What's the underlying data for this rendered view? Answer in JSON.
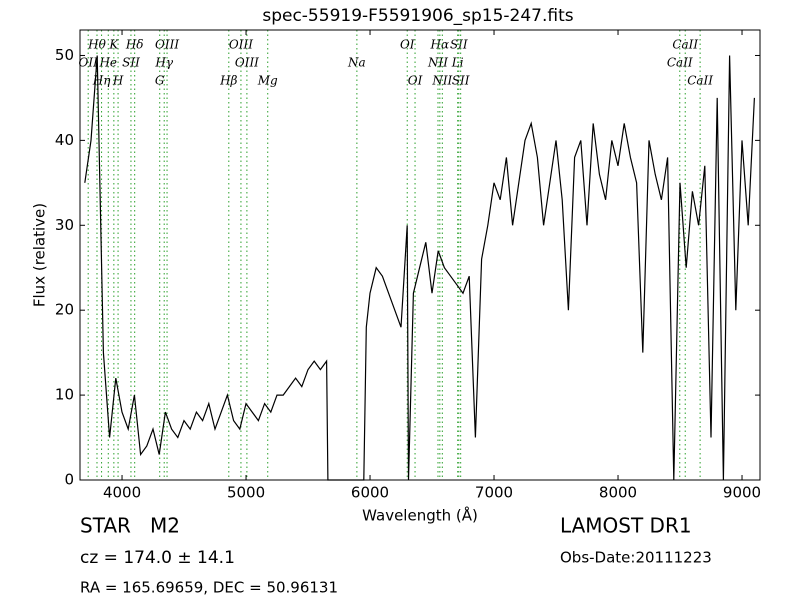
{
  "chart_data": {
    "type": "line",
    "title": "spec-55919-F5591906_sp15-247.fits",
    "xlabel": "Wavelength (Å)",
    "ylabel": "Flux (relative)",
    "xlim": [
      3661,
      9145
    ],
    "ylim": [
      0,
      53
    ],
    "xticks": [
      4000,
      5000,
      6000,
      7000,
      8000,
      9000
    ],
    "yticks": [
      0,
      10,
      20,
      30,
      40,
      50
    ],
    "series": [
      {
        "name": "spectrum",
        "color": "#000000",
        "x": [
          3700,
          3750,
          3800,
          3850,
          3900,
          3950,
          4000,
          4050,
          4100,
          4150,
          4200,
          4250,
          4300,
          4350,
          4400,
          4450,
          4500,
          4550,
          4600,
          4650,
          4700,
          4750,
          4800,
          4850,
          4900,
          4950,
          5000,
          5050,
          5100,
          5150,
          5200,
          5250,
          5300,
          5350,
          5400,
          5450,
          5500,
          5550,
          5600,
          5650,
          5660,
          5700,
          5800,
          5900,
          5950,
          5970,
          6000,
          6050,
          6100,
          6150,
          6200,
          6250,
          6300,
          6310,
          6350,
          6400,
          6450,
          6500,
          6550,
          6600,
          6650,
          6700,
          6750,
          6800,
          6850,
          6900,
          6950,
          7000,
          7050,
          7100,
          7150,
          7200,
          7250,
          7300,
          7350,
          7400,
          7450,
          7500,
          7550,
          7600,
          7650,
          7700,
          7750,
          7800,
          7850,
          7900,
          7950,
          8000,
          8050,
          8100,
          8150,
          8200,
          8250,
          8300,
          8350,
          8400,
          8450,
          8500,
          8550,
          8600,
          8650,
          8700,
          8750,
          8800,
          8850,
          8900,
          8950,
          9000,
          9050,
          9100
        ],
        "values": [
          35,
          40,
          50,
          15,
          5,
          12,
          8,
          6,
          10,
          3,
          4,
          6,
          3,
          8,
          6,
          5,
          7,
          6,
          8,
          7,
          9,
          6,
          8,
          10,
          7,
          6,
          9,
          8,
          7,
          9,
          8,
          10,
          10,
          11,
          12,
          11,
          13,
          14,
          13,
          14,
          0,
          0,
          0,
          0,
          0,
          18,
          22,
          25,
          24,
          22,
          20,
          18,
          30,
          0,
          22,
          25,
          28,
          22,
          27,
          25,
          24,
          23,
          22,
          24,
          5,
          26,
          30,
          35,
          33,
          38,
          30,
          35,
          40,
          42,
          38,
          30,
          35,
          40,
          33,
          20,
          38,
          40,
          30,
          42,
          36,
          33,
          40,
          37,
          42,
          38,
          35,
          15,
          40,
          36,
          33,
          38,
          0,
          35,
          25,
          34,
          30,
          37,
          5,
          45,
          0,
          50,
          20,
          40,
          30,
          45
        ]
      }
    ],
    "line_color": "#2ca02c",
    "line_labels": [
      [
        {
          "label": "Hθ",
          "x": 3798
        },
        {
          "label": "K",
          "x": 3934
        },
        {
          "label": "Hδ",
          "x": 4102
        },
        {
          "label": "OIII",
          "x": 4363
        },
        {
          "label": "OIII",
          "x": 4959
        },
        {
          "label": "OI",
          "x": 6300
        },
        {
          "label": "Hα",
          "x": 6563
        },
        {
          "label": "SII",
          "x": 6716
        },
        {
          "label": "CaII",
          "x": 8542
        }
      ],
      [
        {
          "label": "OII",
          "x": 3727
        },
        {
          "label": "He",
          "x": 3889
        },
        {
          "label": "SII",
          "x": 4072
        },
        {
          "label": "Hγ",
          "x": 4340
        },
        {
          "label": "OIII",
          "x": 5007
        },
        {
          "label": "Na",
          "x": 5894
        },
        {
          "label": "NII",
          "x": 6548
        },
        {
          "label": "Li",
          "x": 6707
        },
        {
          "label": "CaII",
          "x": 8498
        }
      ],
      [
        {
          "label": "Hη",
          "x": 3835
        },
        {
          "label": "H",
          "x": 3968
        },
        {
          "label": "G",
          "x": 4304
        },
        {
          "label": "Hβ",
          "x": 4861
        },
        {
          "label": "Mg",
          "x": 5175
        },
        {
          "label": "OI",
          "x": 6363
        },
        {
          "label": "NII",
          "x": 6583
        },
        {
          "label": "SII",
          "x": 6731
        },
        {
          "label": "CaII",
          "x": 8662
        }
      ]
    ],
    "object": "STAR   M2",
    "survey": "LAMOST DR1",
    "cz": "cz = 174.0 ± 14.1",
    "obs_date": "Obs-Date:20111223",
    "coords": "RA = 165.69659, DEC = 50.96131"
  }
}
